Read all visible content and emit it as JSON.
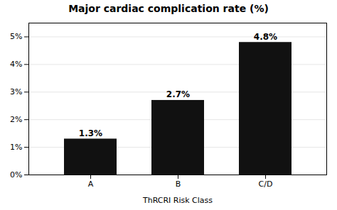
{
  "chart_data": {
    "type": "bar",
    "title": "Major cardiac complication rate (%)",
    "xlabel": "ThRCRI Risk Class",
    "categories": [
      "A",
      "B",
      "C/D"
    ],
    "values": [
      1.3,
      2.7,
      4.8
    ],
    "value_labels": [
      "1.3%",
      "2.7%",
      "4.8%"
    ],
    "data_labels": true,
    "color": "#111111",
    "ylim": [
      0,
      5.5
    ],
    "yticks": [
      {
        "value": 0,
        "label": "0%"
      },
      {
        "value": 1,
        "label": "1%"
      },
      {
        "value": 2,
        "label": "2%"
      },
      {
        "value": 3,
        "label": "3%"
      },
      {
        "value": 4,
        "label": "4%"
      },
      {
        "value": 5,
        "label": "5%"
      }
    ],
    "grid": true
  }
}
